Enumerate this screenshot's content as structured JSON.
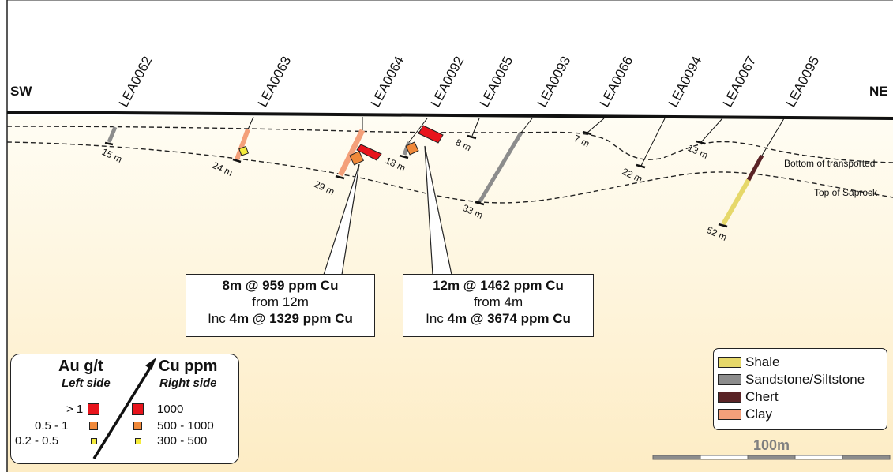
{
  "section": {
    "left_label": "SW",
    "right_label": "NE",
    "boundary_labels": {
      "bottom_transported": "Bottom of transported",
      "top_saprock": "Top of Saprock"
    }
  },
  "holes": [
    {
      "id": "LEA0062",
      "depth_label": "15 m"
    },
    {
      "id": "LEA0063",
      "depth_label": "24 m"
    },
    {
      "id": "LEA0064",
      "depth_label": "29 m"
    },
    {
      "id": "LEA0092",
      "depth_label": "18 m"
    },
    {
      "id": "LEA0065",
      "depth_label": "8 m"
    },
    {
      "id": "LEA0093",
      "depth_label": "33 m"
    },
    {
      "id": "LEA0066",
      "depth_label": "7 m"
    },
    {
      "id": "LEA0094",
      "depth_label": "22 m"
    },
    {
      "id": "LEA0067",
      "depth_label": "13 m"
    },
    {
      "id": "LEA0095",
      "depth_label": "52 m"
    }
  ],
  "callouts": [
    {
      "line1_bold": "8m @ 959 ppm Cu",
      "line2": "from 12m",
      "line3_prefix": "Inc ",
      "line3_bold": "4m @ 1329 ppm Cu"
    },
    {
      "line1_bold": "12m @ 1462 ppm Cu",
      "line2": "from 4m",
      "line3_prefix": "Inc ",
      "line3_bold": "4m @ 3674 ppm Cu"
    }
  ],
  "grade_legend": {
    "au_title": "Au g/t",
    "au_subtitle": "Left side",
    "cu_title": "Cu ppm",
    "cu_subtitle": "Right side",
    "au_classes": [
      "> 1",
      "0.5 - 1",
      "0.2 - 0.5"
    ],
    "cu_classes": [
      "1000",
      "500 - 1000",
      "300 - 500"
    ],
    "class_colors": [
      "#e8141c",
      "#f0893a",
      "#f5ec3c"
    ]
  },
  "lithology_legend": [
    {
      "label": "Shale",
      "color": "#e6d86a"
    },
    {
      "label": "Sandstone/Siltstone",
      "color": "#8c8c8c"
    },
    {
      "label": "Chert",
      "color": "#5a2326"
    },
    {
      "label": "Clay",
      "color": "#f4a07a"
    }
  ],
  "scale_bar": {
    "label": "100m"
  },
  "colors": {
    "ground_fill": "#fdf6e0",
    "sky_fill": "#ffffff"
  }
}
